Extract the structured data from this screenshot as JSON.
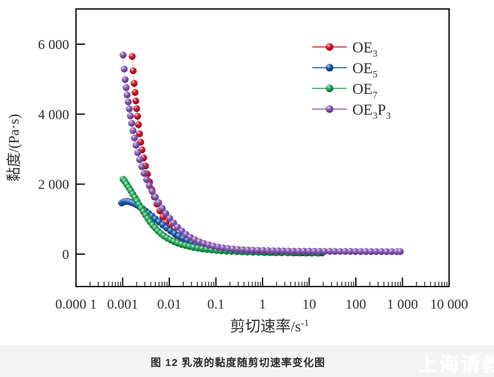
{
  "caption": "图 12  乳液的黏度随剪切速率变化图",
  "watermark": "上海请教",
  "chart_data": {
    "type": "scatter",
    "title": "",
    "xlabel": "剪切速率/s⁻¹",
    "ylabel": "黏度/(Pa·s)",
    "x_title_parts": [
      {
        "t": "剪切速率/s"
      },
      {
        "t": "-1",
        "sup": true
      }
    ],
    "xscale": "log",
    "xlim": [
      0.0001,
      10000
    ],
    "ylim": [
      -930,
      7030
    ],
    "grid": false,
    "legend_position": "upper-right-inside",
    "x_ticks": [
      {
        "label": "0.000 1",
        "value": 0.0001
      },
      {
        "label": "0.001",
        "value": 0.001
      },
      {
        "label": "0.01",
        "value": 0.01
      },
      {
        "label": "0.1",
        "value": 0.1
      },
      {
        "label": "1",
        "value": 1
      },
      {
        "label": "10",
        "value": 10
      },
      {
        "label": "100",
        "value": 100
      },
      {
        "label": "1 000",
        "value": 1000
      },
      {
        "label": "10 000",
        "value": 10000
      }
    ],
    "y_ticks": [
      {
        "label": "0",
        "value": 0
      },
      {
        "label": "2 000",
        "value": 2000
      },
      {
        "label": "4 000",
        "value": 4000
      },
      {
        "label": "6 000",
        "value": 6000
      }
    ],
    "series": [
      {
        "name": "OE3",
        "label_parts": [
          {
            "t": "OE"
          },
          {
            "t": "3",
            "sub": true
          }
        ],
        "color": "#d7182f",
        "dark": "#7f0a18",
        "light": "#ffc4c8",
        "points": [
          [
            0.0016,
            5650
          ],
          [
            0.00168,
            5240
          ],
          [
            0.00176,
            4880
          ],
          [
            0.00184,
            4620
          ],
          [
            0.00191,
            4380
          ],
          [
            0.00199,
            4160
          ],
          [
            0.00208,
            3940
          ],
          [
            0.00218,
            3700
          ],
          [
            0.0023,
            3440
          ],
          [
            0.00244,
            3200
          ],
          [
            0.00261,
            2980
          ],
          [
            0.00282,
            2750
          ],
          [
            0.00308,
            2520
          ],
          [
            0.00339,
            2290
          ],
          [
            0.00377,
            2060
          ],
          [
            0.00423,
            1840
          ],
          [
            0.00478,
            1630
          ],
          [
            0.00545,
            1430
          ],
          [
            0.00627,
            1240
          ],
          [
            0.00727,
            1060
          ],
          [
            0.00851,
            900
          ],
          [
            0.01,
            760
          ],
          [
            0.012,
            640
          ],
          [
            0.0144,
            535
          ],
          [
            0.0175,
            450
          ],
          [
            0.0215,
            378
          ],
          [
            0.0268,
            318
          ],
          [
            0.0337,
            270
          ],
          [
            0.0428,
            230
          ],
          [
            0.0551,
            196
          ],
          [
            0.0717,
            168
          ],
          [
            0.0943,
            145
          ],
          [
            0.125,
            126
          ],
          [
            0.168,
            110
          ],
          [
            0.227,
            97
          ],
          [
            0.31,
            86
          ],
          [
            0.427,
            77
          ],
          [
            0.593,
            69
          ],
          [
            0.831,
            62
          ],
          [
            1.17,
            57
          ],
          [
            1.67,
            52
          ],
          [
            2.39,
            48
          ],
          [
            3.45,
            44
          ],
          [
            5.03,
            41
          ],
          [
            7.39,
            38
          ],
          [
            10.9,
            36
          ],
          [
            16.2,
            34
          ]
        ]
      },
      {
        "name": "OE5",
        "label_parts": [
          {
            "t": "OE"
          },
          {
            "t": "5",
            "sub": true
          }
        ],
        "color": "#2058ae",
        "dark": "#0f2f66",
        "light": "#b5d0f2",
        "points": [
          [
            0.00095,
            1460
          ],
          [
            0.00104,
            1490
          ],
          [
            0.00114,
            1505
          ],
          [
            0.00126,
            1505
          ],
          [
            0.0014,
            1495
          ],
          [
            0.00157,
            1475
          ],
          [
            0.00177,
            1445
          ],
          [
            0.00201,
            1405
          ],
          [
            0.0023,
            1355
          ],
          [
            0.00266,
            1300
          ],
          [
            0.00309,
            1235
          ],
          [
            0.00362,
            1165
          ],
          [
            0.00427,
            1085
          ],
          [
            0.00507,
            1000
          ],
          [
            0.00606,
            915
          ],
          [
            0.00729,
            830
          ],
          [
            0.00882,
            745
          ],
          [
            0.0107,
            662
          ],
          [
            0.0131,
            584
          ],
          [
            0.0161,
            512
          ],
          [
            0.0198,
            448
          ],
          [
            0.0245,
            390
          ],
          [
            0.0304,
            340
          ],
          [
            0.0378,
            296
          ],
          [
            0.0472,
            258
          ],
          [
            0.0591,
            226
          ],
          [
            0.0741,
            198
          ],
          [
            0.0932,
            174
          ],
          [
            0.117,
            154
          ],
          [
            0.148,
            137
          ],
          [
            0.187,
            122
          ],
          [
            0.237,
            110
          ],
          [
            0.3,
            99
          ],
          [
            0.381,
            90
          ],
          [
            0.483,
            82
          ],
          [
            0.614,
            75
          ],
          [
            0.781,
            69
          ],
          [
            0.994,
            64
          ],
          [
            1.27,
            59
          ],
          [
            1.61,
            55
          ],
          [
            2.06,
            51
          ],
          [
            2.63,
            48
          ],
          [
            3.36,
            45
          ],
          [
            4.29,
            42
          ],
          [
            5.49,
            40
          ],
          [
            7.02,
            38
          ],
          [
            8.98,
            36
          ],
          [
            11.5,
            34
          ],
          [
            14.7,
            33
          ],
          [
            18.8,
            32
          ]
        ]
      },
      {
        "name": "OE7",
        "label_parts": [
          {
            "t": "OE"
          },
          {
            "t": "7",
            "sub": true
          }
        ],
        "color": "#22a257",
        "dark": "#0c6233",
        "light": "#b9ecce",
        "points": [
          [
            0.00102,
            2140
          ],
          [
            0.00112,
            2070
          ],
          [
            0.00123,
            1990
          ],
          [
            0.00136,
            1900
          ],
          [
            0.0015,
            1810
          ],
          [
            0.00166,
            1710
          ],
          [
            0.00184,
            1610
          ],
          [
            0.00204,
            1510
          ],
          [
            0.00226,
            1410
          ],
          [
            0.00251,
            1310
          ],
          [
            0.0028,
            1210
          ],
          [
            0.00312,
            1110
          ],
          [
            0.00349,
            1010
          ],
          [
            0.00392,
            915
          ],
          [
            0.00443,
            825
          ],
          [
            0.00503,
            740
          ],
          [
            0.00576,
            660
          ],
          [
            0.00664,
            585
          ],
          [
            0.00772,
            518
          ],
          [
            0.00905,
            458
          ],
          [
            0.0107,
            404
          ],
          [
            0.0127,
            356
          ],
          [
            0.0152,
            314
          ],
          [
            0.0183,
            277
          ],
          [
            0.0222,
            244
          ],
          [
            0.0271,
            215
          ],
          [
            0.0333,
            190
          ],
          [
            0.0412,
            168
          ],
          [
            0.0513,
            149
          ],
          [
            0.0643,
            132
          ],
          [
            0.0811,
            118
          ],
          [
            0.103,
            105
          ],
          [
            0.131,
            94
          ],
          [
            0.168,
            85
          ],
          [
            0.216,
            77
          ],
          [
            0.28,
            70
          ],
          [
            0.364,
            63
          ],
          [
            0.476,
            58
          ],
          [
            0.625,
            53
          ],
          [
            0.824,
            49
          ],
          [
            1.09,
            45
          ],
          [
            1.45,
            42
          ],
          [
            1.93,
            39
          ],
          [
            2.58,
            37
          ],
          [
            3.46,
            35
          ],
          [
            4.65,
            33
          ],
          [
            6.28,
            31
          ],
          [
            8.51,
            30
          ],
          [
            11.6,
            29
          ],
          [
            15.8,
            28
          ]
        ]
      },
      {
        "name": "OE3P3",
        "label_parts": [
          {
            "t": "OE"
          },
          {
            "t": "3",
            "sub": true
          },
          {
            "t": "P"
          },
          {
            "t": "3",
            "sub": true
          }
        ],
        "color": "#8a5fb5",
        "dark": "#533077",
        "light": "#e0cdf2",
        "points": [
          [
            0.00102,
            5690
          ],
          [
            0.00108,
            5290
          ],
          [
            0.00113,
            4990
          ],
          [
            0.00119,
            4760
          ],
          [
            0.00125,
            4550
          ],
          [
            0.00132,
            4350
          ],
          [
            0.00139,
            4150
          ],
          [
            0.00147,
            3950
          ],
          [
            0.00156,
            3740
          ],
          [
            0.00167,
            3530
          ],
          [
            0.00179,
            3320
          ],
          [
            0.00193,
            3110
          ],
          [
            0.0021,
            2900
          ],
          [
            0.00231,
            2700
          ],
          [
            0.00256,
            2500
          ],
          [
            0.00287,
            2310
          ],
          [
            0.00325,
            2130
          ],
          [
            0.00372,
            1960
          ],
          [
            0.0043,
            1790
          ],
          [
            0.00503,
            1630
          ],
          [
            0.00593,
            1470
          ],
          [
            0.00705,
            1310
          ],
          [
            0.00843,
            1160
          ],
          [
            0.0102,
            1020
          ],
          [
            0.0124,
            890
          ],
          [
            0.0151,
            770
          ],
          [
            0.0186,
            660
          ],
          [
            0.0229,
            560
          ],
          [
            0.0284,
            480
          ],
          [
            0.0354,
            410
          ],
          [
            0.0443,
            352
          ],
          [
            0.0556,
            303
          ],
          [
            0.07,
            262
          ],
          [
            0.0884,
            228
          ],
          [
            0.112,
            200
          ],
          [
            0.142,
            178
          ],
          [
            0.181,
            160
          ],
          [
            0.231,
            146
          ],
          [
            0.295,
            135
          ],
          [
            0.377,
            126
          ],
          [
            0.483,
            119
          ],
          [
            0.619,
            113
          ],
          [
            0.794,
            108
          ],
          [
            1.02,
            104
          ],
          [
            1.31,
            100
          ],
          [
            1.69,
            97
          ],
          [
            2.17,
            94
          ],
          [
            2.79,
            91
          ],
          [
            3.59,
            89
          ],
          [
            4.63,
            87
          ],
          [
            5.97,
            85
          ],
          [
            7.69,
            84
          ],
          [
            9.92,
            82
          ],
          [
            12.8,
            81
          ],
          [
            16.5,
            80
          ],
          [
            21.3,
            79
          ],
          [
            27.5,
            78
          ],
          [
            35.5,
            77
          ],
          [
            45.8,
            77
          ],
          [
            59.1,
            76
          ],
          [
            76.3,
            76
          ],
          [
            98.4,
            75
          ],
          [
            127,
            75
          ],
          [
            164,
            74
          ],
          [
            211,
            74
          ],
          [
            273,
            73
          ],
          [
            352,
            73
          ],
          [
            454,
            72
          ],
          [
            585,
            72
          ],
          [
            755,
            71
          ],
          [
            900,
            71
          ]
        ]
      }
    ]
  }
}
